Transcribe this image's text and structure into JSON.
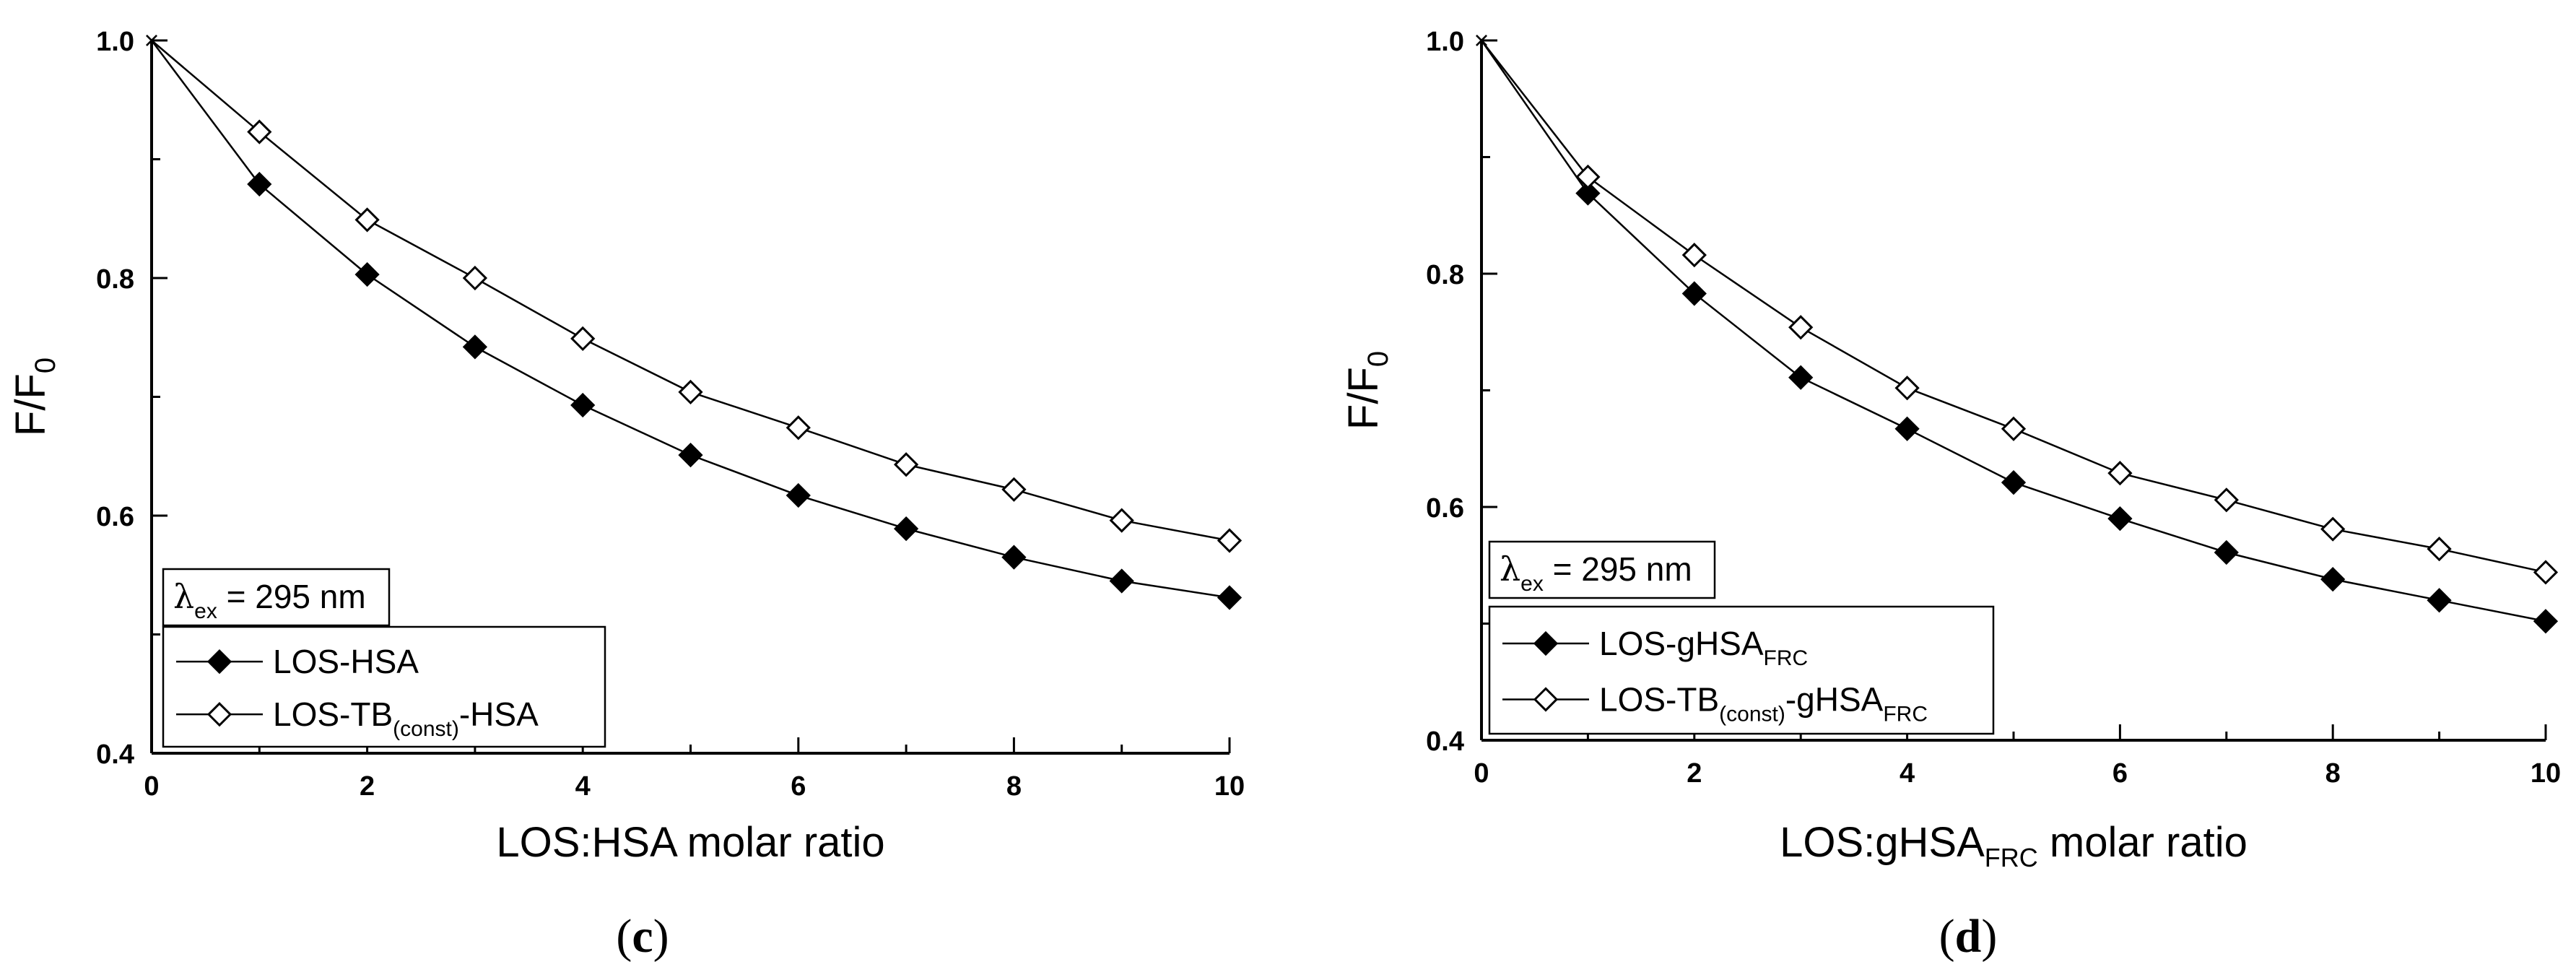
{
  "chart_data": [
    {
      "type": "line",
      "panel_label": "(c)",
      "xlabel": "LOS:HSA molar ratio",
      "xlabel_main": "LOS:HSA molar ratio",
      "xlabel_sub": "",
      "xlabel_tail": "",
      "ylabel_main": "F/F",
      "ylabel_sub": "0",
      "xlim": [
        0,
        10
      ],
      "ylim": [
        0.4,
        1.0
      ],
      "x_ticks": [
        "0",
        "2",
        "4",
        "6",
        "8",
        "10"
      ],
      "y_ticks": [
        "0.4",
        "0.6",
        "0.8",
        "1.0"
      ],
      "annotation": {
        "symbol": "λ",
        "sub": "ex",
        "text": " = 295 nm"
      },
      "x": [
        0,
        1,
        2,
        3,
        4,
        5,
        6,
        7,
        8,
        9,
        10
      ],
      "series": [
        {
          "name": "LOS-HSA",
          "label_parts": {
            "a": "LOS-HSA",
            "sub": "",
            "b": "",
            "sub2": ""
          },
          "marker": "filled-diamond",
          "values": [
            1.0,
            0.879,
            0.803,
            0.742,
            0.693,
            0.651,
            0.617,
            0.589,
            0.565,
            0.545,
            0.531
          ]
        },
        {
          "name": "LOS-TB(const)-HSA",
          "label_parts": {
            "a": "LOS-TB",
            "sub": "(const)",
            "b": "-HSA",
            "sub2": ""
          },
          "marker": "open-diamond",
          "values": [
            1.0,
            0.923,
            0.849,
            0.8,
            0.749,
            0.704,
            0.674,
            0.643,
            0.622,
            0.596,
            0.579
          ]
        }
      ]
    },
    {
      "type": "line",
      "panel_label": "(d)",
      "xlabel": "LOS:gHSAFRC molar ratio",
      "xlabel_main": "LOS:gHSA",
      "xlabel_sub": "FRC",
      "xlabel_tail": " molar ratio",
      "ylabel_main": "F/F",
      "ylabel_sub": "0",
      "xlim": [
        0,
        10
      ],
      "ylim": [
        0.4,
        1.0
      ],
      "x_ticks": [
        "0",
        "2",
        "4",
        "6",
        "8",
        "10"
      ],
      "y_ticks": [
        "0.4",
        "0.6",
        "0.8",
        "1.0"
      ],
      "annotation": {
        "symbol": "λ",
        "sub": "ex",
        "text": " = 295 nm"
      },
      "x": [
        0,
        1,
        2,
        3,
        4,
        5,
        6,
        7,
        8,
        9,
        10
      ],
      "series": [
        {
          "name": "LOS-gHSAFRC",
          "label_parts": {
            "a": "LOS-gHSA",
            "sub": "FRC",
            "b": "",
            "sub2": ""
          },
          "marker": "filled-diamond",
          "values": [
            1.0,
            0.869,
            0.783,
            0.711,
            0.667,
            0.621,
            0.59,
            0.561,
            0.538,
            0.52,
            0.502
          ]
        },
        {
          "name": "LOS-TB(const)-gHSAFRC",
          "label_parts": {
            "a": "LOS-TB",
            "sub": "(const)",
            "b": "-gHSA",
            "sub2": "FRC"
          },
          "marker": "open-diamond",
          "values": [
            1.0,
            0.883,
            0.816,
            0.754,
            0.702,
            0.667,
            0.629,
            0.606,
            0.581,
            0.564,
            0.544
          ]
        }
      ]
    }
  ]
}
